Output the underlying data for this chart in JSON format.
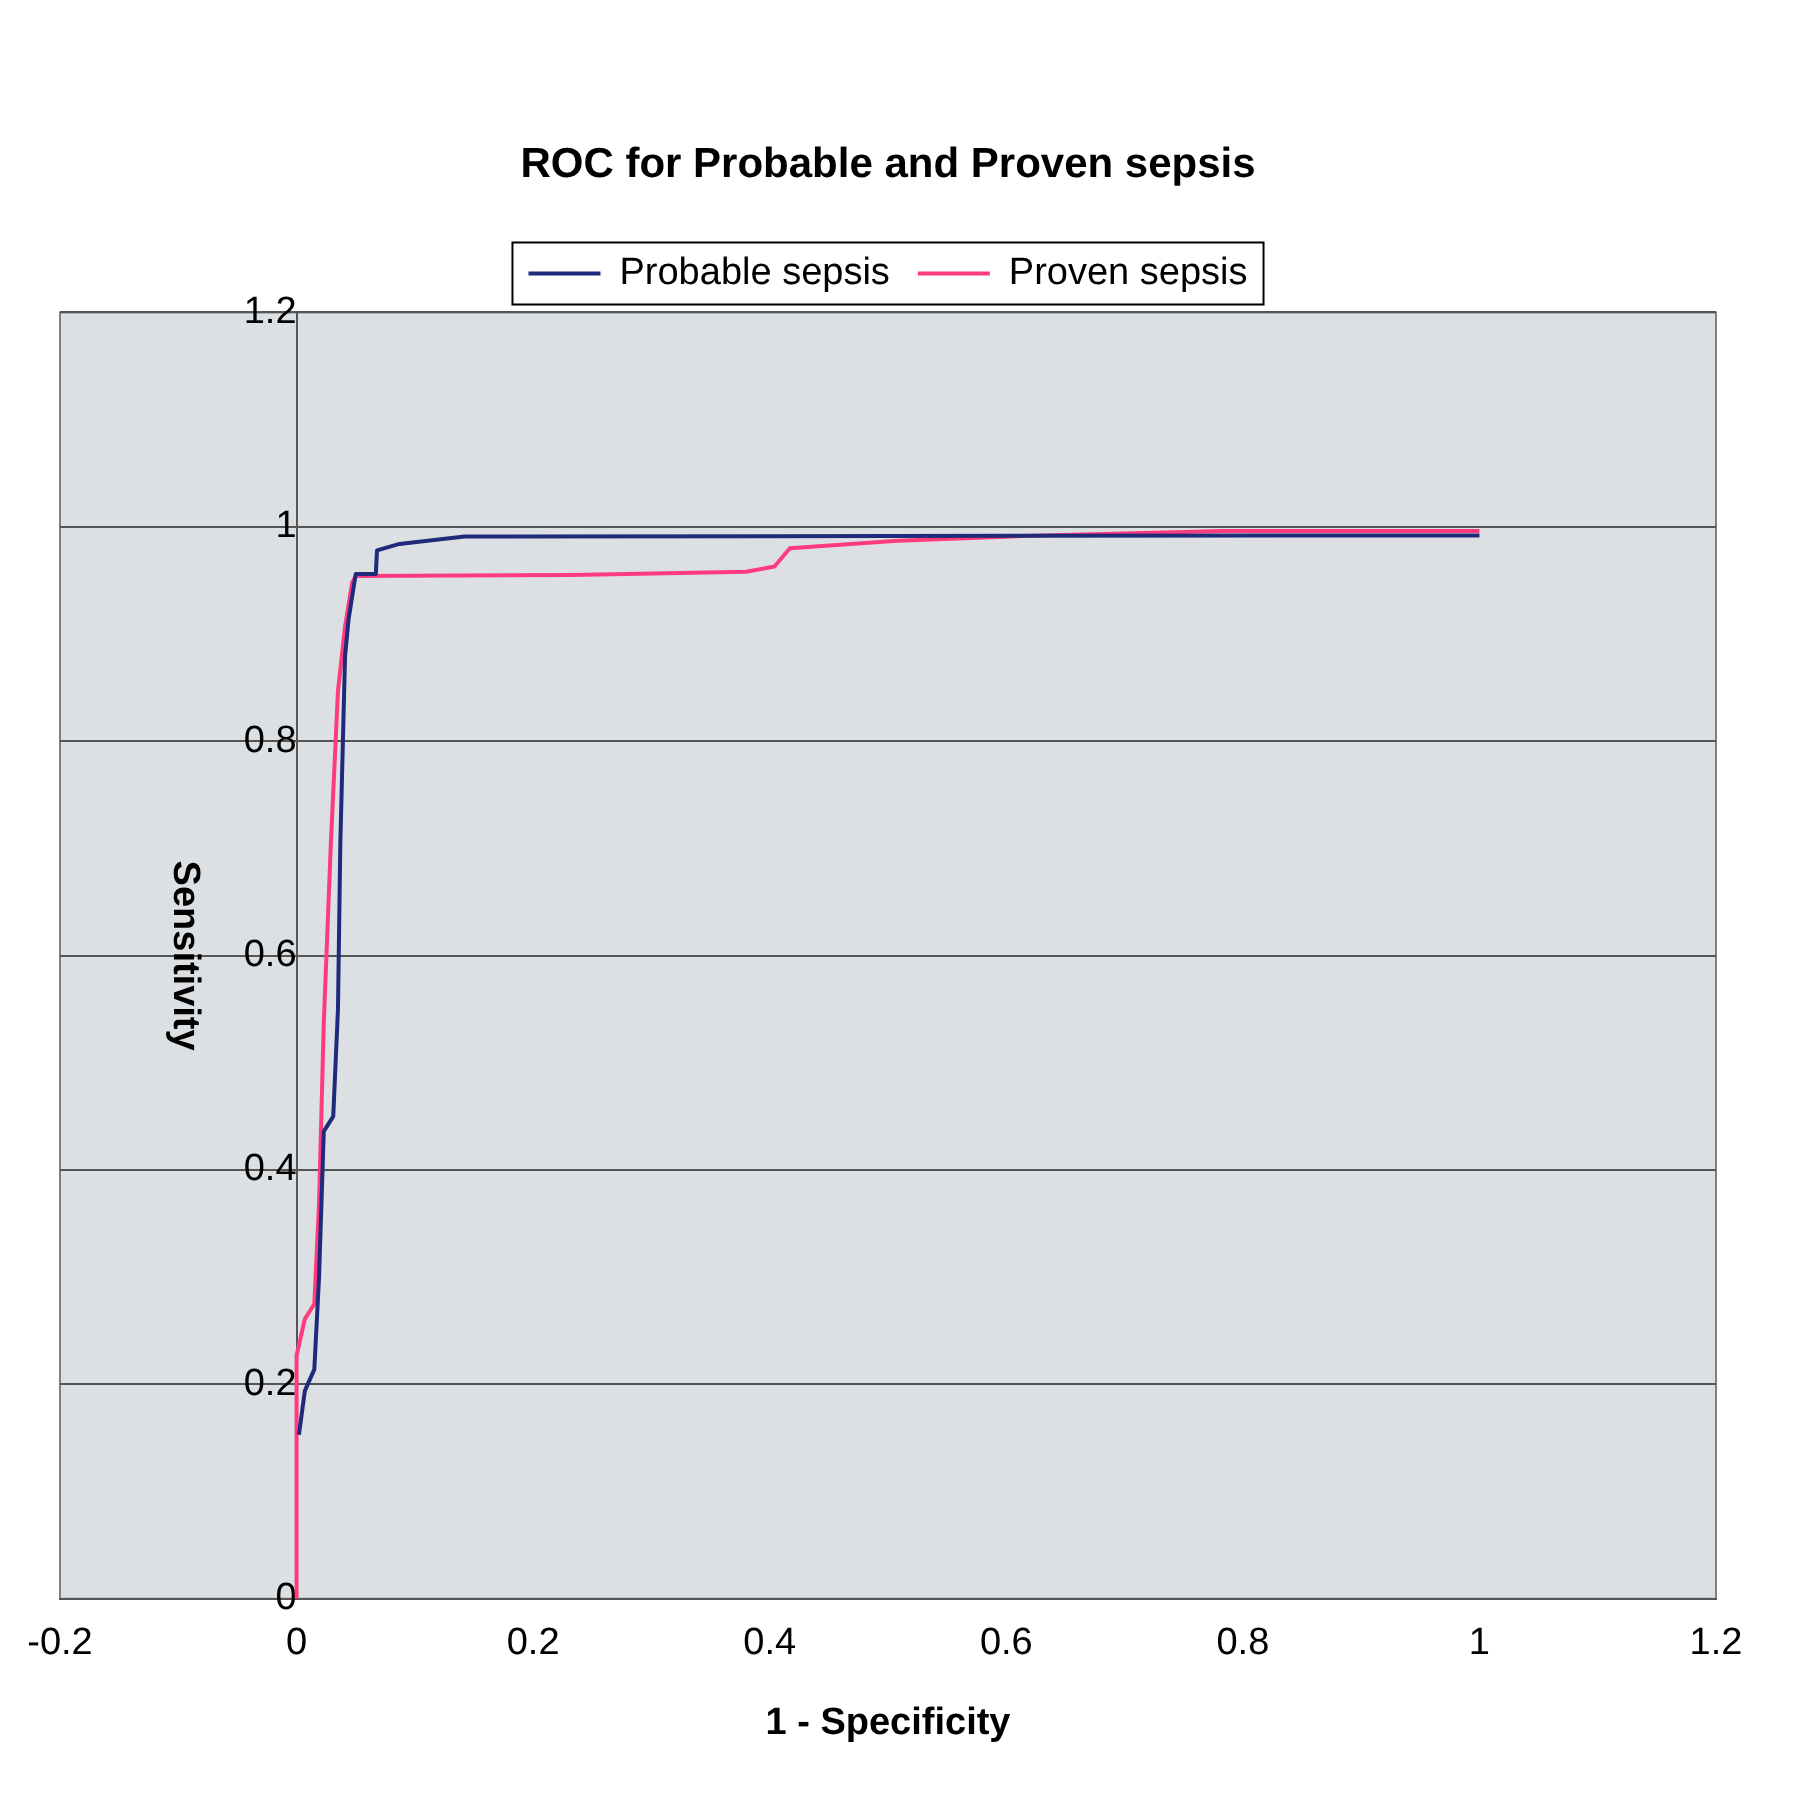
{
  "chart_data": {
    "type": "line",
    "title": "ROC for Probable and Proven sepsis",
    "xlabel": "1 - Specificity",
    "ylabel": "Sensitivity",
    "xlim": [
      -0.2,
      1.2
    ],
    "xticks": [
      -0.2,
      0,
      0.2,
      0.4,
      0.6,
      0.8,
      1,
      1.2
    ],
    "ylim": [
      0,
      1.2
    ],
    "yticks": [
      0,
      0.2,
      0.4,
      0.6,
      0.8,
      1,
      1.2
    ],
    "grid": "y",
    "legend": "top",
    "marker": "none",
    "line_style": "solid",
    "series": [
      {
        "name": "Probable sepsis",
        "color": "#1f2a7a",
        "x": [
          0.002,
          0.007,
          0.015,
          0.019,
          0.023,
          0.031,
          0.035,
          0.037,
          0.041,
          0.044,
          0.05,
          0.067,
          0.068,
          0.087,
          0.142,
          1
        ],
        "values": [
          0.153,
          0.194,
          0.214,
          0.3,
          0.436,
          0.45,
          0.55,
          0.705,
          0.88,
          0.914,
          0.956,
          0.956,
          0.978,
          0.984,
          0.991,
          0.992
        ]
      },
      {
        "name": "Proven sepsis",
        "color": "#ff3b7f",
        "x": [
          0,
          0,
          0.007,
          0.015,
          0.019,
          0.023,
          0.029,
          0.035,
          0.041,
          0.047,
          0.05,
          0.233,
          0.38,
          0.404,
          0.417,
          0.508,
          0.631,
          0.783,
          1
        ],
        "values": [
          0,
          0.227,
          0.261,
          0.275,
          0.369,
          0.537,
          0.705,
          0.847,
          0.907,
          0.948,
          0.954,
          0.955,
          0.958,
          0.963,
          0.98,
          0.987,
          0.992,
          0.996,
          0.996
        ]
      }
    ]
  }
}
